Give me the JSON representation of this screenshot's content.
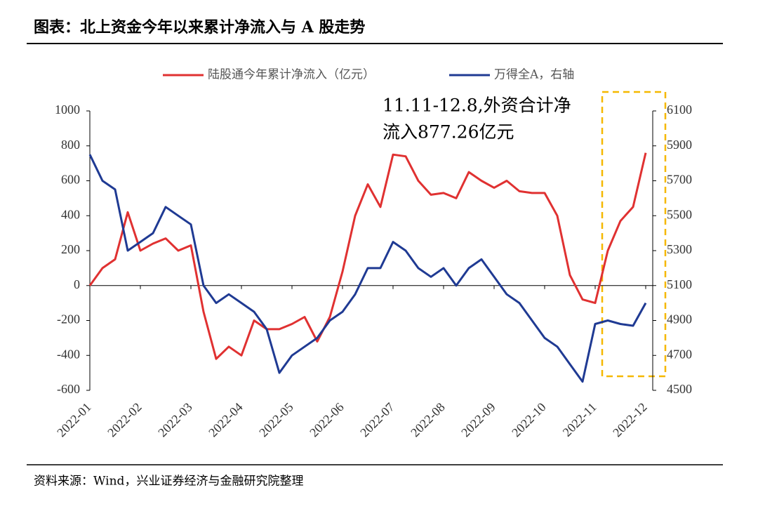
{
  "chart_data": {
    "type": "line",
    "title": "图表：北上资金今年以来累计净流入与 A 股走势",
    "source": "资料来源：Wind，兴业证券经济与金融研究院整理",
    "annotation": [
      "11.11-12.8,外资合计净",
      "流入877.26亿元"
    ],
    "categories": [
      "2022-01",
      null,
      null,
      null,
      "2022-02",
      null,
      null,
      null,
      "2022-03",
      null,
      null,
      null,
      "2022-04",
      null,
      null,
      null,
      "2022-05",
      null,
      null,
      null,
      "2022-06",
      null,
      null,
      null,
      "2022-07",
      null,
      null,
      null,
      "2022-08",
      null,
      null,
      null,
      "2022-09",
      null,
      null,
      null,
      "2022-10",
      null,
      null,
      null,
      "2022-11",
      null,
      null,
      null,
      "2022-12"
    ],
    "series": [
      {
        "name": "陆股通今年累计净流入（亿元）",
        "color": "#e03131",
        "axis": "y",
        "values": [
          0,
          100,
          150,
          420,
          200,
          240,
          270,
          200,
          230,
          -150,
          -420,
          -350,
          -400,
          -200,
          -250,
          -250,
          -220,
          -180,
          -320,
          -180,
          80,
          400,
          580,
          450,
          750,
          740,
          600,
          520,
          530,
          500,
          650,
          600,
          560,
          600,
          540,
          530,
          530,
          400,
          60,
          -80,
          -100,
          200,
          370,
          450,
          760
        ]
      },
      {
        "name": "万得全A，右轴",
        "color": "#1f3a93",
        "axis": "y2",
        "values": [
          5850,
          5700,
          5650,
          5300,
          5350,
          5400,
          5550,
          5500,
          5450,
          5100,
          5000,
          5050,
          5000,
          4950,
          4850,
          4600,
          4700,
          4750,
          4800,
          4900,
          4950,
          5050,
          5200,
          5200,
          5350,
          5300,
          5200,
          5150,
          5200,
          5100,
          5200,
          5250,
          5150,
          5050,
          5000,
          4900,
          4800,
          4750,
          4650,
          4550,
          4880,
          4900,
          4880,
          4870,
          5000
        ]
      }
    ],
    "ylim": [
      -600,
      1000
    ],
    "yticks": [
      -600,
      -400,
      -200,
      0,
      200,
      400,
      600,
      800,
      1000
    ],
    "y2lim": [
      4500,
      6100
    ],
    "y2ticks": [
      4500,
      4700,
      4900,
      5100,
      5300,
      5500,
      5700,
      5900,
      6100
    ],
    "legend": "top"
  }
}
